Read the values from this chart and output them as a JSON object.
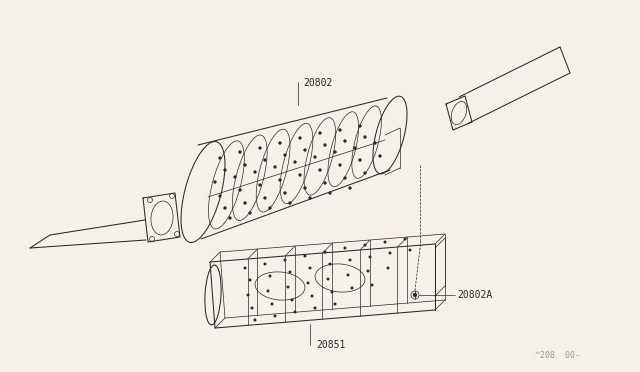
{
  "bg_color": "#f5f0e8",
  "line_color": "#2a2a2a",
  "text_color": "#2a2a2a",
  "label_20802": "20802",
  "label_20851": "20851",
  "label_20802A": "20802A",
  "watermark": "^208  00-",
  "fig_width": 6.4,
  "fig_height": 3.72,
  "dpi": 100,
  "lw_main": 0.75,
  "lw_thin": 0.5,
  "lw_med": 0.65
}
